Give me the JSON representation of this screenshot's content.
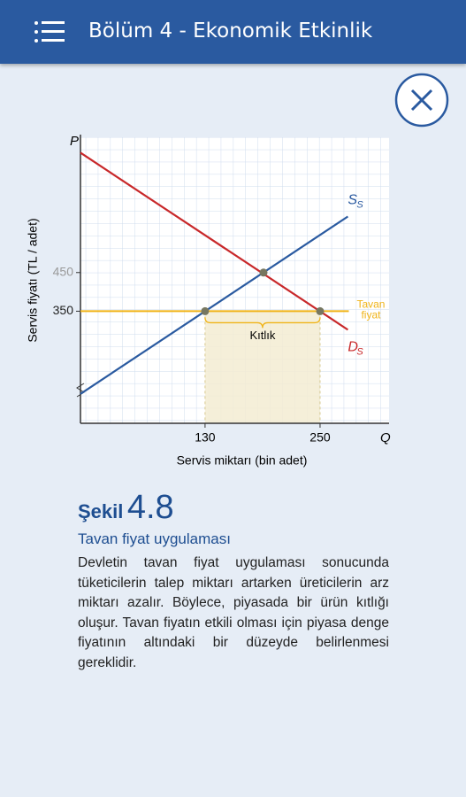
{
  "header": {
    "title": "Bölüm 4 - Ekonomik Etkinlik"
  },
  "chart_data": {
    "type": "line",
    "x_label": "Servis miktarı (bin adet)",
    "y_label": "Servis fiyatı (TL / adet)",
    "x_axis_letter": "Q",
    "y_axis_letter": "P",
    "xlim": [
      0,
      322
    ],
    "ylim": [
      60,
      800
    ],
    "xticks": [
      130,
      250
    ],
    "yticks": [
      350,
      450
    ],
    "ytick_colors": [
      "#222222",
      "#9a9a9a"
    ],
    "series": [
      {
        "name": "S",
        "name_sub": "S",
        "color": "#2a5aa0",
        "x": [
          0,
          279
        ],
        "values": [
          136,
          595
        ]
      },
      {
        "name": "D",
        "name_sub": "S",
        "color": "#c8282a",
        "x": [
          0,
          279
        ],
        "values": [
          760,
          302
        ]
      }
    ],
    "ceiling": {
      "label_lines": [
        "Tavan",
        "fiyat"
      ],
      "value": 350,
      "x": [
        0,
        280
      ],
      "color": "#f0b419"
    },
    "markers": {
      "x": [
        130,
        191,
        250
      ],
      "values": [
        350,
        450,
        350
      ],
      "color": "#777760"
    },
    "shortage": {
      "label": "Kıtlık",
      "x": [
        130,
        250
      ],
      "color": "#f3ecd2"
    }
  },
  "caption": {
    "prefix": "Şekil",
    "number": "4.8",
    "subtitle": "Tavan fiyat uygulaması",
    "text": "Devletin tavan fiyat uygulaması sonucunda tüketicilerin talep miktarı artarken üreticilerin arz miktarı azalır. Böylece, piyasada bir ürün kıtlığı oluşur. Tavan fiyatın etkili olması için piyasa denge fiyatının altındaki bir düzeyde belirlenmesi gereklidir."
  }
}
